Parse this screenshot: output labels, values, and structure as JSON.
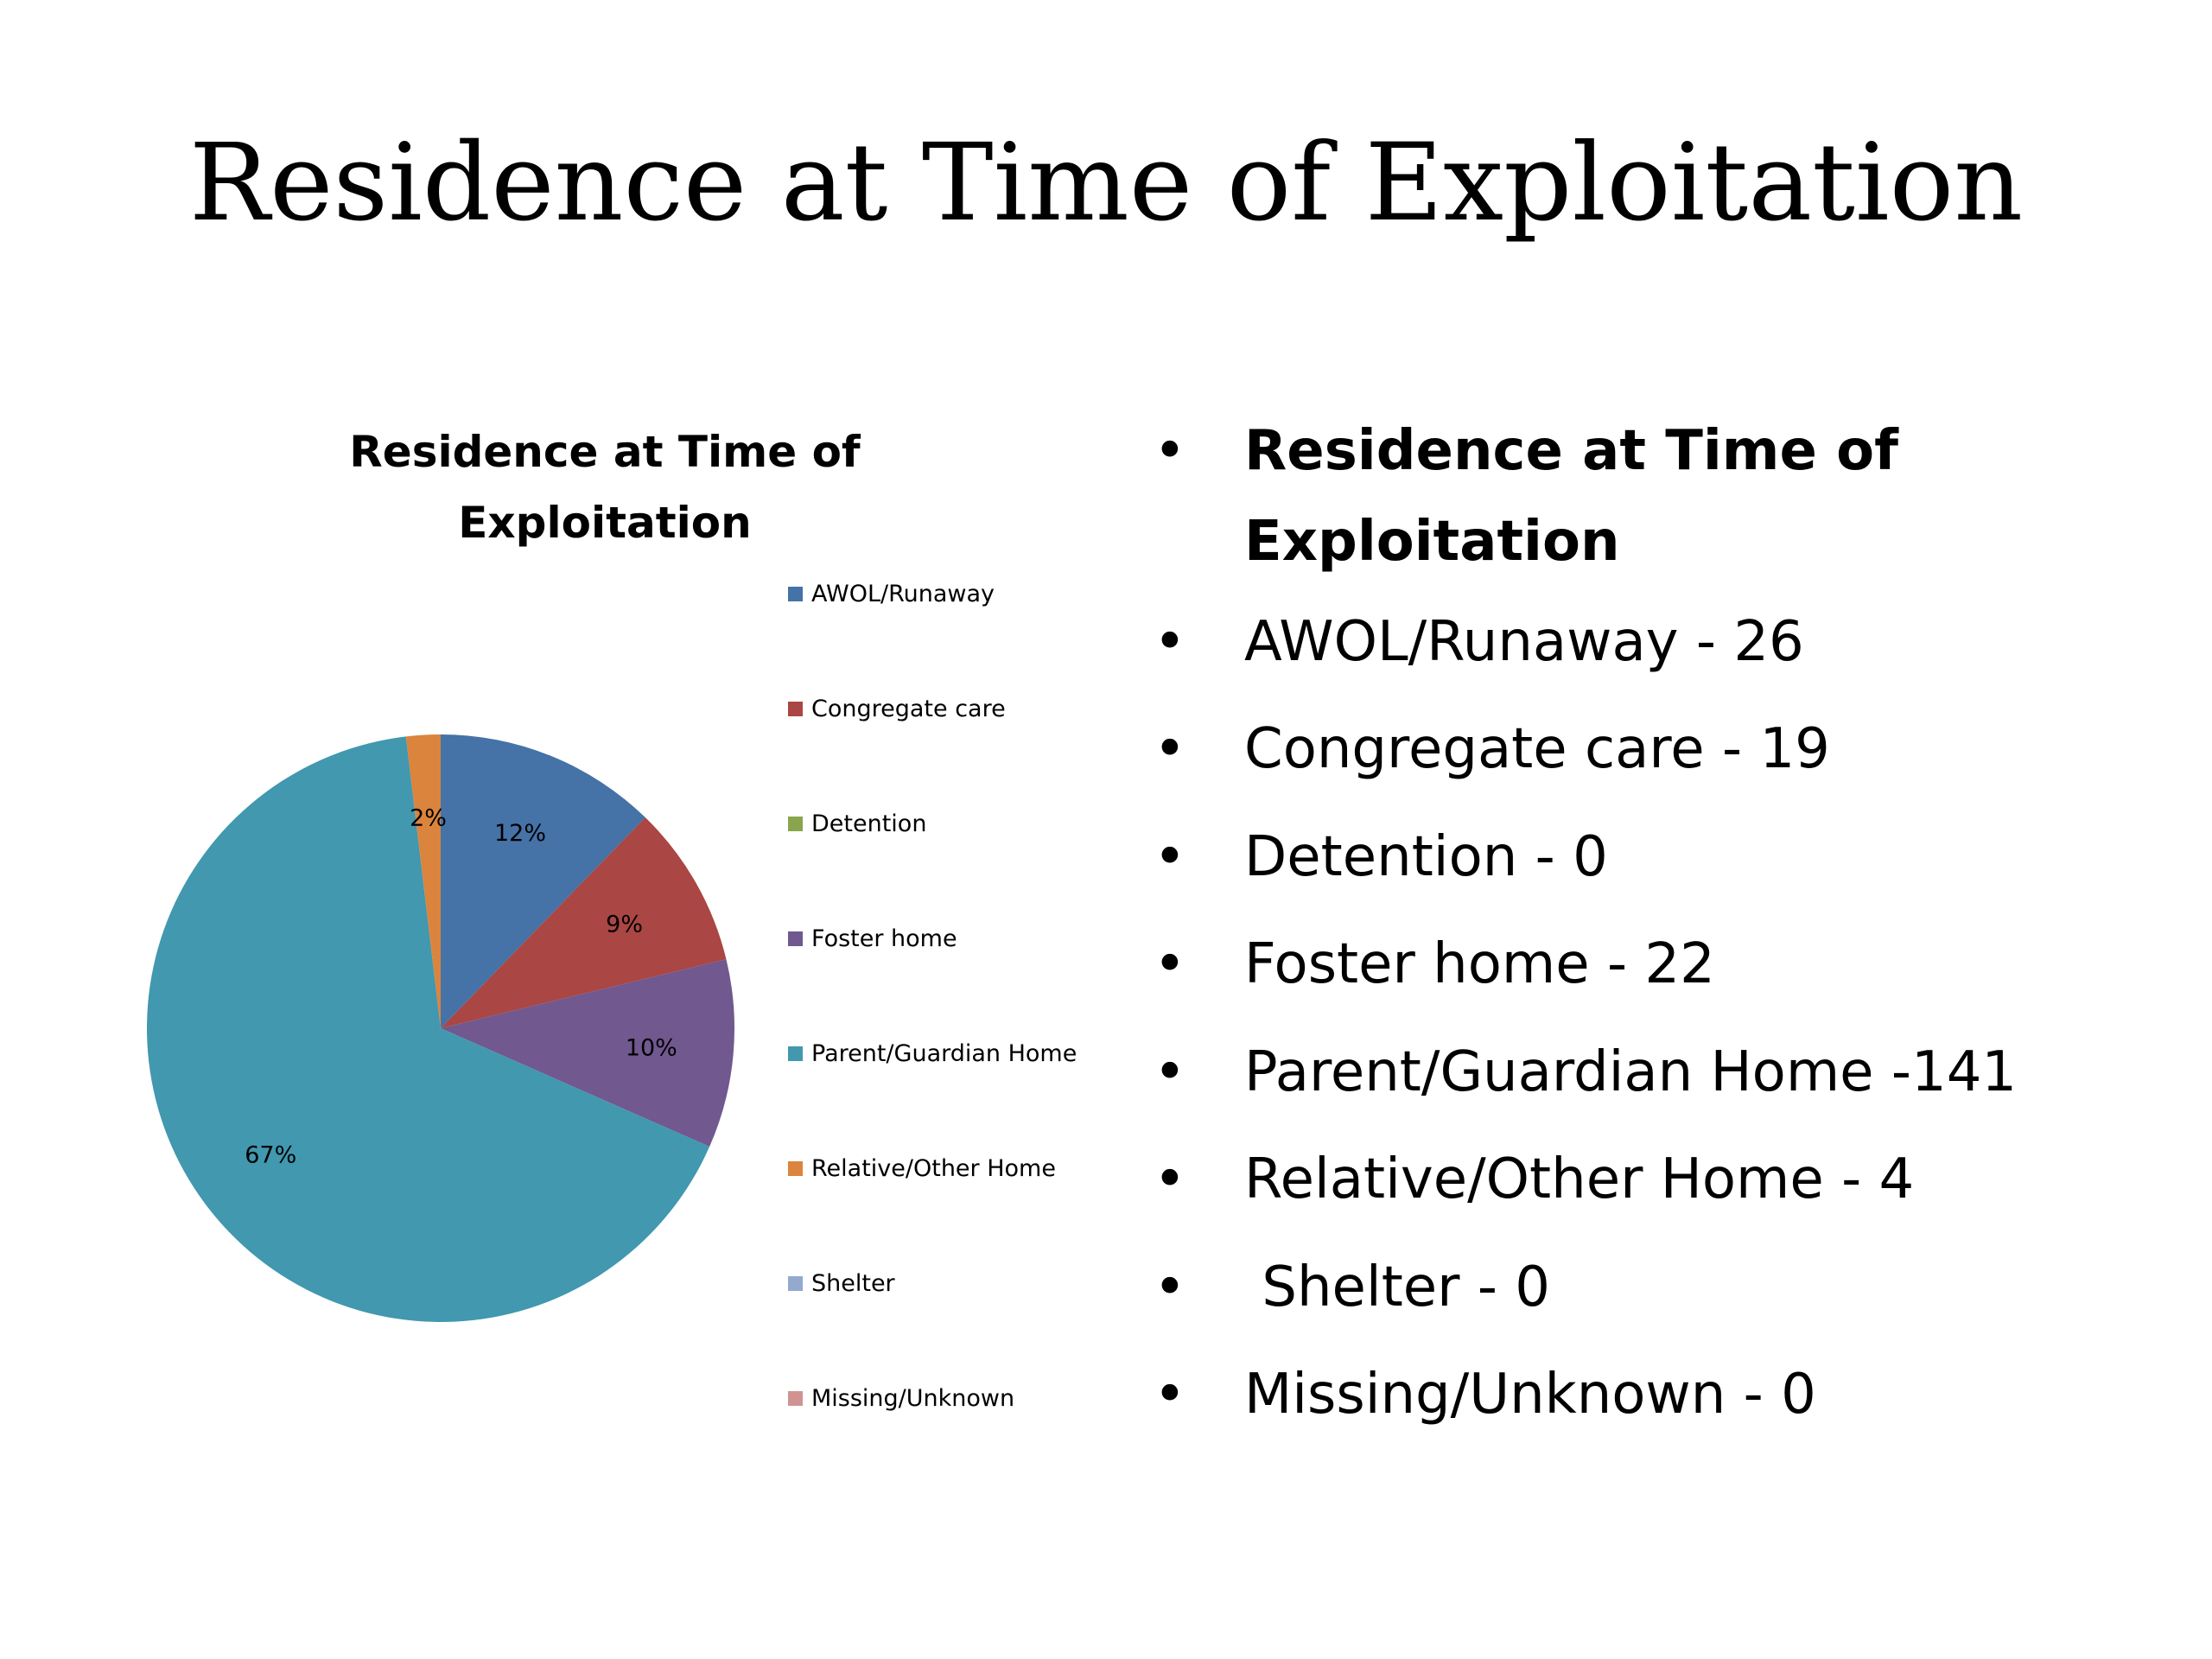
{
  "slide": {
    "title": "Residence at Time of Exploitation"
  },
  "chart_data": {
    "type": "pie",
    "title": "Residence at Time of Exploitation",
    "categories": [
      "AWOL/Runaway",
      "Congregate care",
      "Detention",
      "Foster home",
      "Parent/Guardian Home",
      "Relative/Other Home",
      "Shelter",
      "Missing/Unknown"
    ],
    "values": [
      26,
      19,
      0,
      22,
      141,
      4,
      0,
      0
    ],
    "percent_labels": [
      "12%",
      "9%",
      "",
      "10%",
      "67%",
      "2%",
      "",
      ""
    ],
    "colors": [
      "#4572A7",
      "#AA4643",
      "#89A54E",
      "#71588F",
      "#4198AF",
      "#DB843D",
      "#93A9CF",
      "#D19392"
    ],
    "legend": "right",
    "start_angle_deg": 0,
    "direction": "clockwise"
  },
  "bullets": {
    "heading": "Residence at Time of Exploitation",
    "items": [
      "AWOL/Runaway - 26",
      "Congregate care - 19",
      "Detention - 0",
      "Foster home - 22",
      "Parent/Guardian Home -141",
      "Relative/Other Home - 4",
      " Shelter - 0",
      "Missing/Unknown - 0"
    ],
    "bullet_char": "•"
  }
}
